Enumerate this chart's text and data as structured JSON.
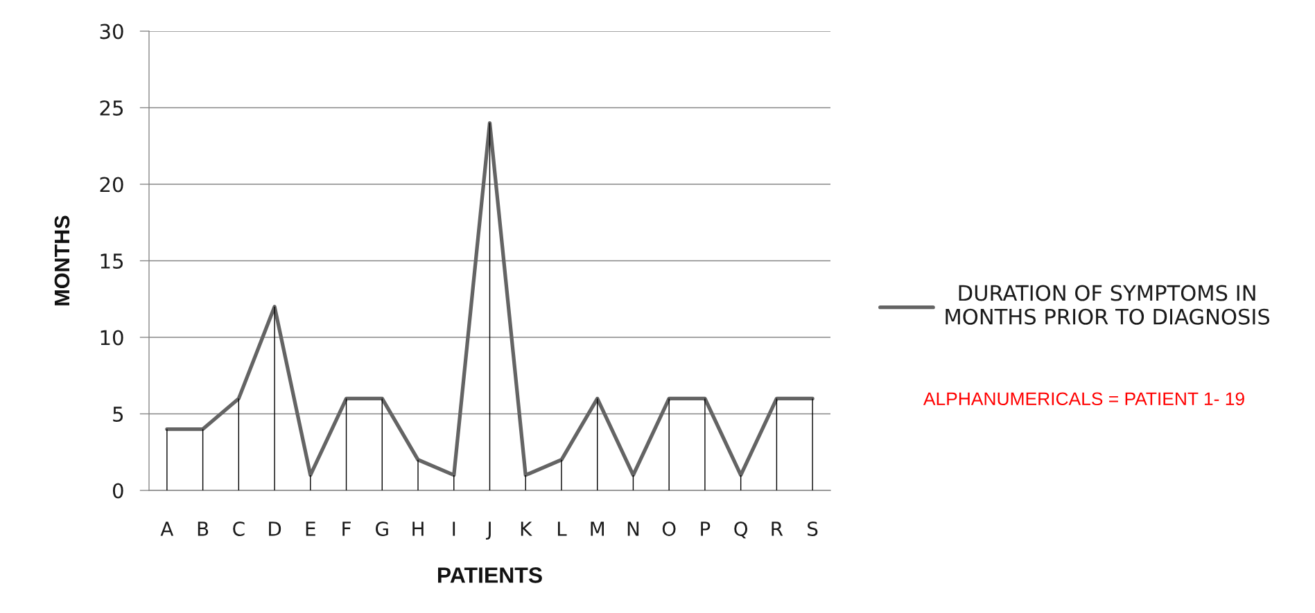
{
  "chart_data": {
    "type": "line",
    "xlabel": "PATIENTS",
    "ylabel": "MONTHS",
    "categories": [
      "A",
      "B",
      "C",
      "D",
      "E",
      "F",
      "G",
      "H",
      "I",
      "J",
      "K",
      "L",
      "M",
      "N",
      "O",
      "P",
      "Q",
      "R",
      "S"
    ],
    "series": [
      {
        "type": "bar",
        "color": "#000000",
        "values": [
          4,
          4,
          6,
          12,
          1,
          6,
          6,
          2,
          1,
          24,
          1,
          2,
          6,
          1,
          6,
          6,
          1,
          6,
          6
        ]
      },
      {
        "name": "DURATION OF SYMPTOMS IN\nMONTHS PRIOR TO DIAGNOSIS",
        "color": "#646464",
        "values": [
          4,
          4,
          6,
          12,
          1,
          6,
          6,
          2,
          1,
          24,
          1,
          2,
          6,
          1,
          6,
          6,
          1,
          6,
          6
        ]
      }
    ],
    "ylim": [
      0,
      30
    ],
    "yticks": [
      0,
      5,
      10,
      15,
      20,
      25,
      30
    ],
    "grid": "y",
    "legend": "right",
    "line_style": "solid",
    "annotations": [
      "ALPHANUMERICALS = PATIENT 1- 19"
    ]
  }
}
